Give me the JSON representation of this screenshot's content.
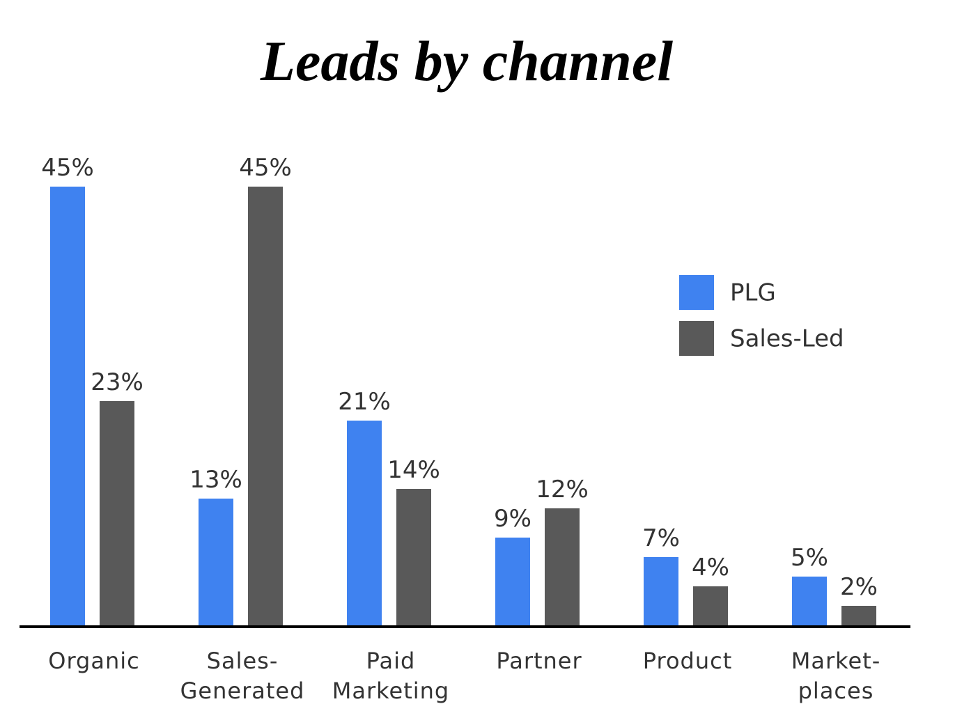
{
  "chart_data": {
    "type": "bar",
    "title": "Leads by channel",
    "categories": [
      "Organic",
      "Sales-\nGenerated",
      "Paid\nMarketing",
      "Partner",
      "Product",
      "Market-\nplaces"
    ],
    "series": [
      {
        "name": "PLG",
        "color": "#3f82f0",
        "values": [
          45,
          13,
          21,
          9,
          7,
          5
        ],
        "value_labels": [
          "45%",
          "13%",
          "21%",
          "9%",
          "7%",
          "5%"
        ]
      },
      {
        "name": "Sales-Led",
        "color": "#595959",
        "values": [
          23,
          45,
          14,
          12,
          4,
          2
        ],
        "value_labels": [
          "23%",
          "45%",
          "14%",
          "12%",
          "4%",
          "2%"
        ]
      }
    ],
    "legend": "upper right"
  }
}
